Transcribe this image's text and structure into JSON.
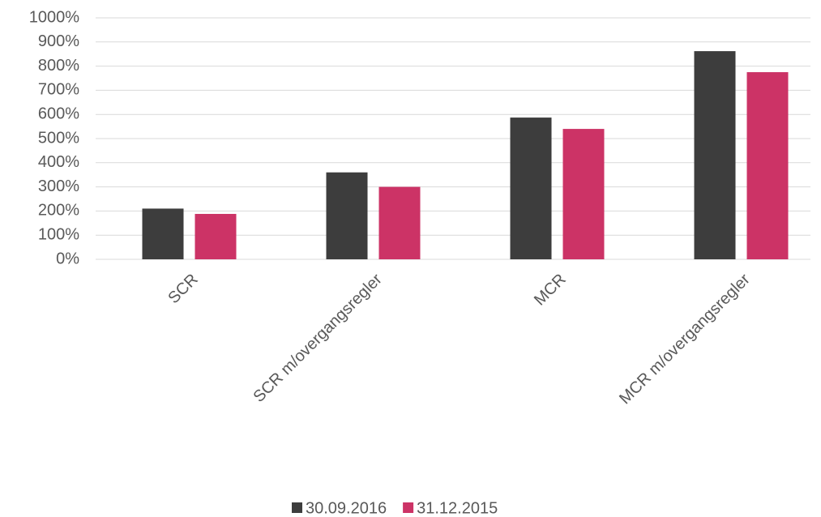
{
  "chart_data": {
    "type": "bar",
    "categories": [
      "SCR",
      "SCR m/overgangsregler",
      "MCR",
      "MCR m/overgangsregler"
    ],
    "series": [
      {
        "name": "30.09.2016",
        "color": "#3d3d3d",
        "values": [
          210,
          360,
          587,
          862
        ]
      },
      {
        "name": "31.12.2015",
        "color": "#cc3366",
        "values": [
          188,
          300,
          540,
          775
        ]
      }
    ],
    "ylim": [
      0,
      1000
    ],
    "yticks": [
      {
        "value": 0,
        "label": "0%"
      },
      {
        "value": 100,
        "label": "100%"
      },
      {
        "value": 200,
        "label": "200%"
      },
      {
        "value": 300,
        "label": "300%"
      },
      {
        "value": 400,
        "label": "400%"
      },
      {
        "value": 500,
        "label": "500%"
      },
      {
        "value": 600,
        "label": "600%"
      },
      {
        "value": 700,
        "label": "700%"
      },
      {
        "value": 800,
        "label": "800%"
      },
      {
        "value": 900,
        "label": "900%"
      },
      {
        "value": 1000,
        "label": "1000%"
      }
    ],
    "grid": true,
    "legend": "bottom"
  }
}
